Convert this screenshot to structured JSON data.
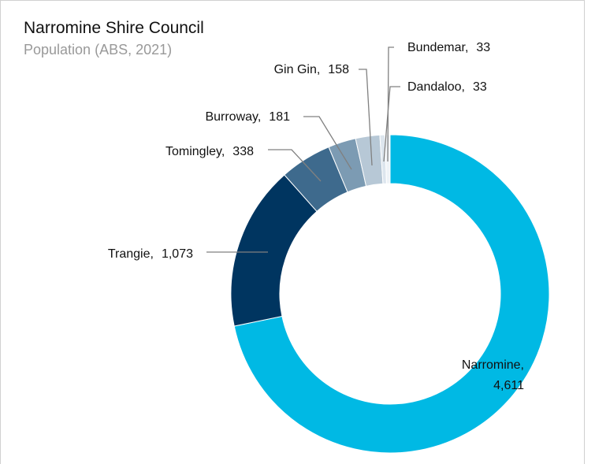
{
  "chart_data": {
    "type": "donut",
    "title": "Narromine Shire Council",
    "subtitle": "Population (ABS, 2021)",
    "categories": [
      "Narromine",
      "Trangie",
      "Tomingley",
      "Burroway",
      "Gin Gin",
      "Dandaloo",
      "Bundemar"
    ],
    "values": [
      4611,
      1073,
      338,
      181,
      158,
      33,
      33
    ],
    "value_labels": [
      "4,611",
      "1,073",
      "338",
      "181",
      "158",
      "33",
      "33"
    ],
    "separator": ",",
    "colors": [
      "#00b9e4",
      "#003560",
      "#3e6a8d",
      "#7c9bb3",
      "#b7c8d6",
      "#dde6ee",
      "#eef3f7"
    ]
  }
}
